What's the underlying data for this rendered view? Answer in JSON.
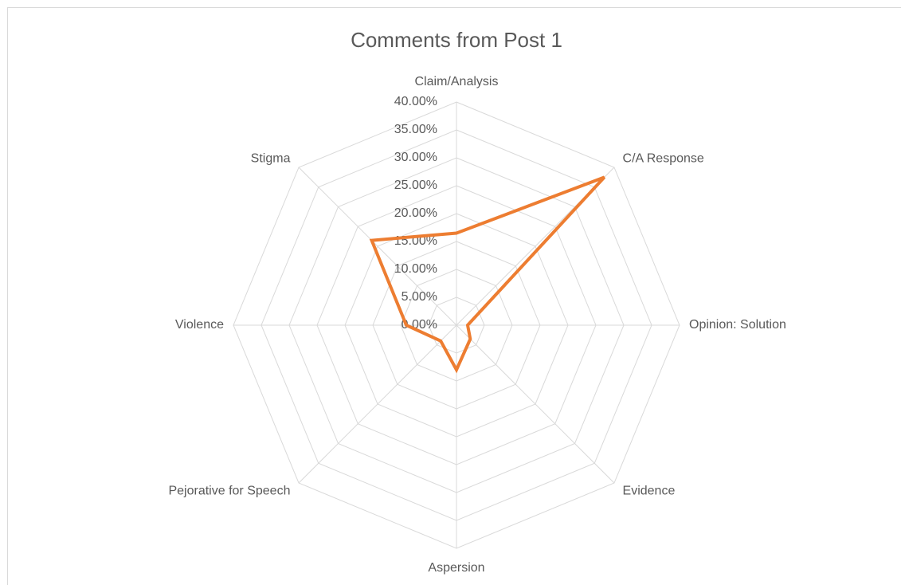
{
  "chart_data": {
    "type": "radar",
    "title": "Comments from Post 1",
    "categories": [
      "Claim/Analysis",
      "C/A Response",
      "Opinion: Solution",
      "Evidence",
      "Aspersion",
      "Pejorative for Speech",
      "Violence",
      "Stigma"
    ],
    "series": [
      {
        "name": "Post 1",
        "color": "#ed7d31",
        "values": [
          16.5,
          37.5,
          2,
          3.5,
          8,
          4,
          9,
          21.5
        ]
      }
    ],
    "ylim": [
      0,
      40
    ],
    "yticks": [
      {
        "value": 0,
        "label": "0.00%"
      },
      {
        "value": 5,
        "label": "5.00%"
      },
      {
        "value": 10,
        "label": "10.00%"
      },
      {
        "value": 15,
        "label": "15.00%"
      },
      {
        "value": 20,
        "label": "20.00%"
      },
      {
        "value": 25,
        "label": "25.00%"
      },
      {
        "value": 30,
        "label": "30.00%"
      },
      {
        "value": 35,
        "label": "35.00%"
      },
      {
        "value": 40,
        "label": "40.00%"
      }
    ],
    "grid": true
  }
}
